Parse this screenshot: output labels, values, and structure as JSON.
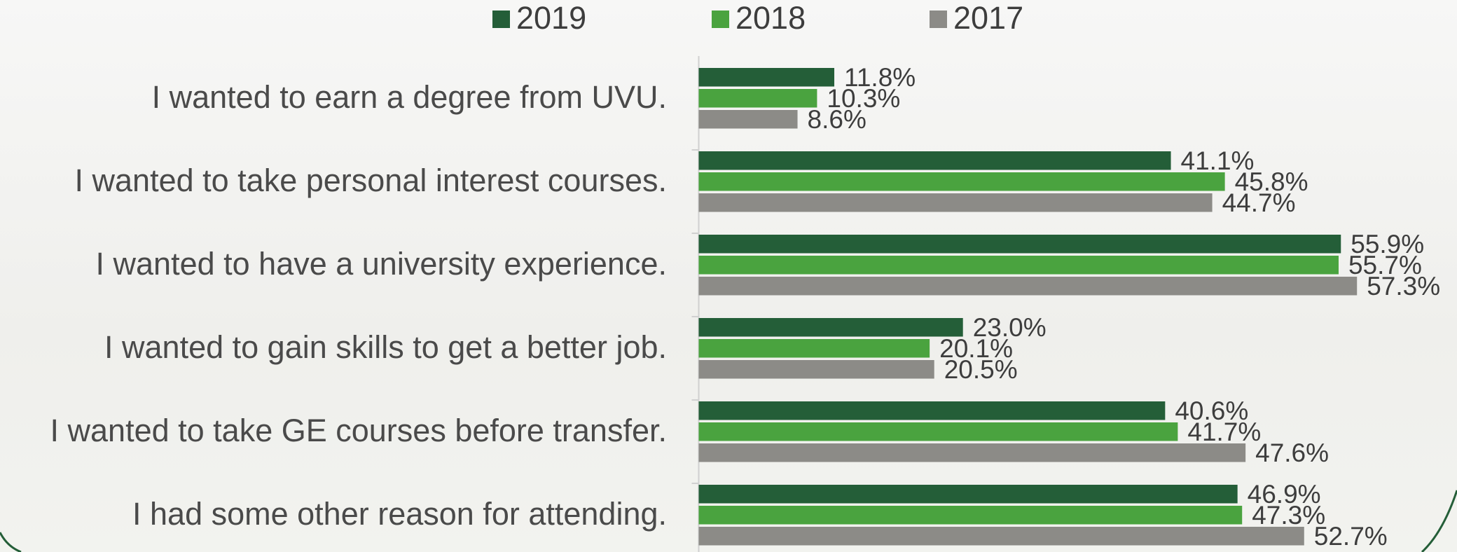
{
  "chart_data": {
    "type": "bar",
    "orientation": "horizontal",
    "categories": [
      "I wanted to earn a degree from UVU.",
      "I wanted to take personal interest courses.",
      "I wanted to have a university experience.",
      "I wanted to gain skills to get a better job.",
      "I wanted to take GE courses before transfer.",
      "I had some other reason for attending."
    ],
    "series": [
      {
        "name": "2019",
        "color": "#245e38",
        "values": [
          11.8,
          41.1,
          55.9,
          23.0,
          40.6,
          46.9
        ],
        "value_labels": [
          "11.8%",
          "41.1%",
          "55.9%",
          "23.0%",
          "40.6%",
          "46.9%"
        ]
      },
      {
        "name": "2018",
        "color": "#4aa33f",
        "values": [
          10.3,
          45.8,
          55.7,
          20.1,
          41.7,
          47.3
        ],
        "value_labels": [
          "10.3%",
          "45.8%",
          "55.7%",
          "20.1%",
          "41.7%",
          "47.3%"
        ]
      },
      {
        "name": "2017",
        "color": "#8c8b87",
        "values": [
          8.6,
          44.7,
          57.3,
          20.5,
          47.6,
          52.7
        ],
        "value_labels": [
          "8.6%",
          "44.7%",
          "57.3%",
          "20.5%",
          "47.6%",
          "52.7%"
        ]
      }
    ],
    "legend": "top"
  }
}
